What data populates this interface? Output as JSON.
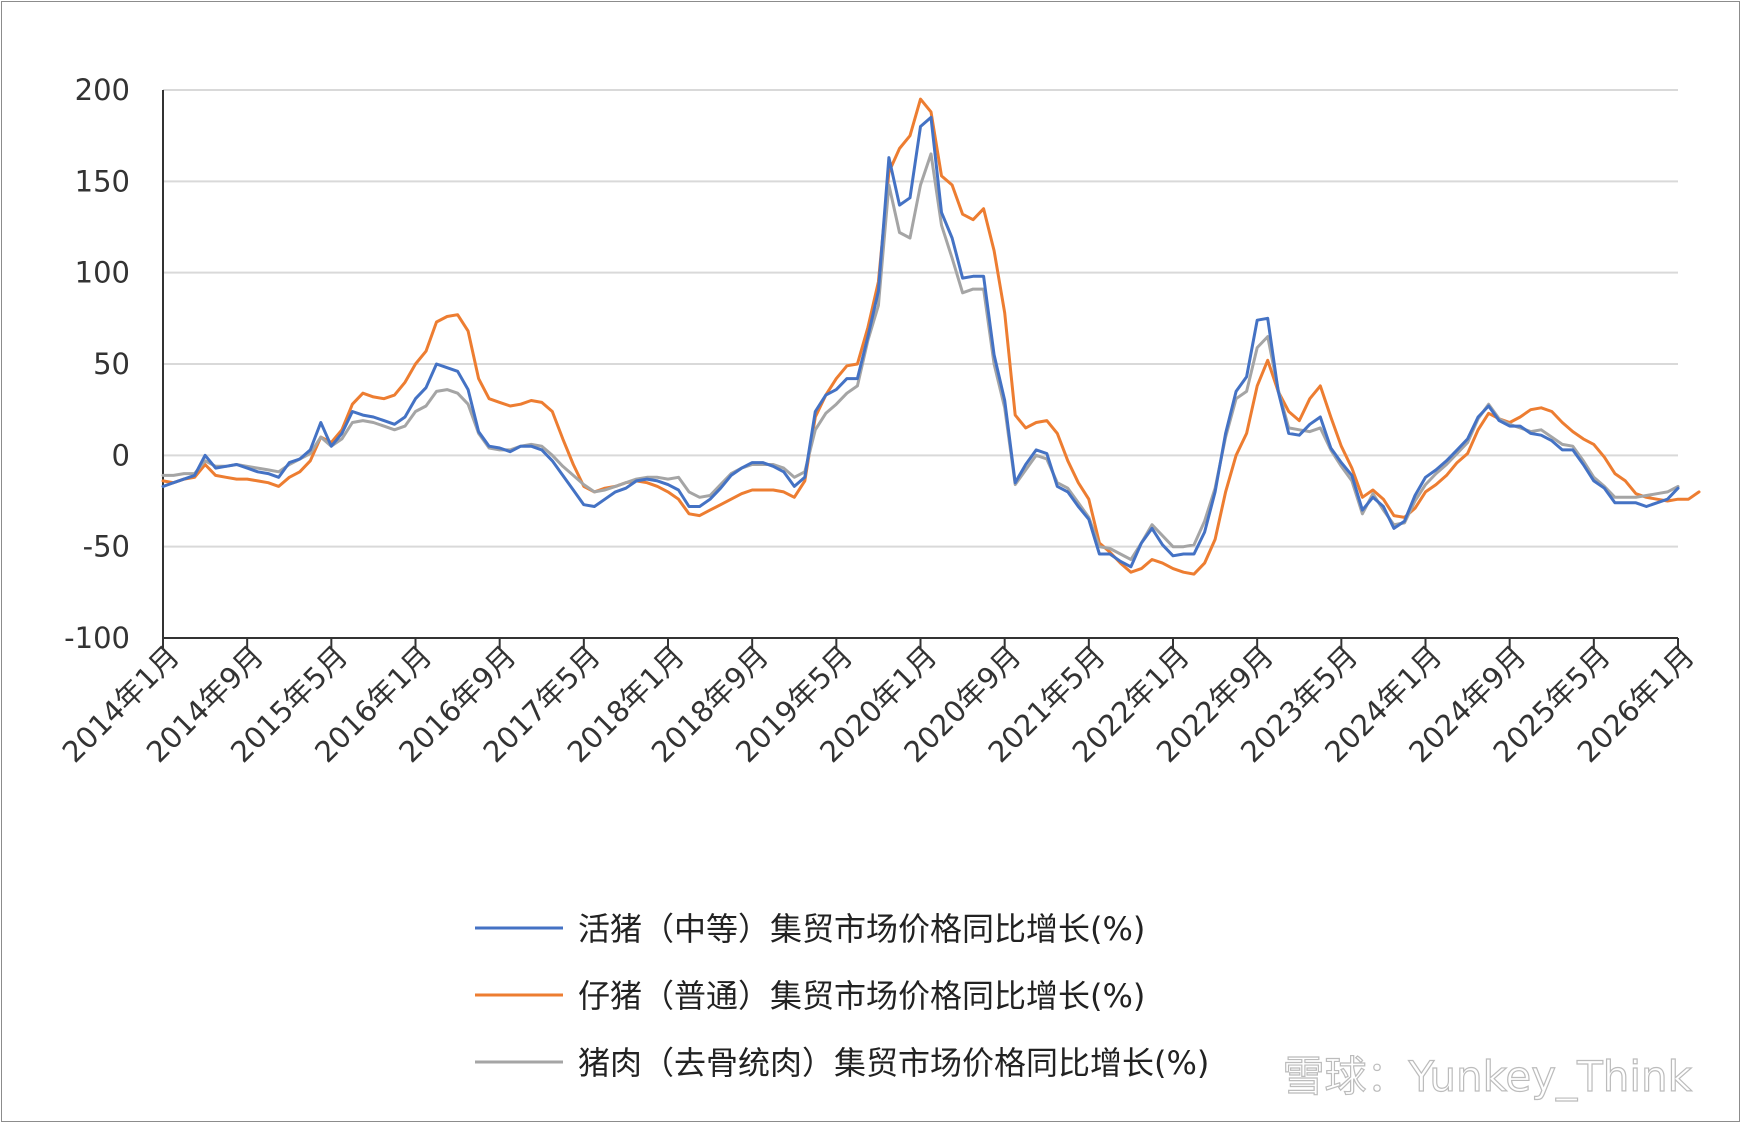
{
  "chart_data": {
    "type": "line",
    "ylim": [
      -100,
      200
    ],
    "yticks": [
      "200",
      "150",
      "100",
      "50",
      "0",
      "-50",
      "-100"
    ],
    "x_tick_labels": [
      "2014年1月",
      "2014年9月",
      "2015年5月",
      "2016年1月",
      "2016年9月",
      "2017年5月",
      "2018年1月",
      "2018年9月",
      "2019年5月",
      "2020年1月",
      "2020年9月",
      "2021年5月",
      "2022年1月",
      "2022年9月",
      "2023年5月",
      "2024年1月",
      "2024年9月",
      "2025年5月",
      "2026年1月"
    ],
    "x_start": "2014-01",
    "x_end": "2026-01",
    "grid": true,
    "legend_position": "bottom",
    "series": [
      {
        "name": "活猪（中等）集贸市场价格同比增长(%)",
        "color": "#4472C4",
        "values": [
          -17,
          -15,
          -13,
          -11,
          0,
          -7,
          -6,
          -5,
          -7,
          -9,
          -10,
          -12,
          -4,
          -2,
          3,
          18,
          5,
          12,
          24,
          22,
          21,
          19,
          17,
          21,
          31,
          37,
          50,
          48,
          46,
          36,
          13,
          5,
          4,
          2,
          5,
          5,
          3,
          -3,
          -11,
          -19,
          -27,
          -28,
          -24,
          -20,
          -18,
          -14,
          -13,
          -14,
          -16,
          -19,
          -28,
          -28,
          -24,
          -18,
          -11,
          -7,
          -4,
          -4,
          -6,
          -9,
          -17,
          -12,
          24,
          33,
          36,
          42,
          42,
          65,
          90,
          163,
          137,
          141,
          180,
          185,
          133,
          119,
          97,
          98,
          98,
          55,
          30,
          -15,
          -5,
          3,
          1,
          -17,
          -20,
          -28,
          -35,
          -54,
          -54,
          -58,
          -61,
          -48,
          -40,
          -49,
          -55,
          -54,
          -54,
          -42,
          -20,
          12,
          35,
          43,
          74,
          75,
          35,
          12,
          11,
          17,
          21,
          4,
          -4,
          -11,
          -30,
          -23,
          -28,
          -40,
          -36,
          -22,
          -12,
          -8,
          -3,
          3,
          9,
          21,
          27,
          19,
          16,
          16,
          12,
          11,
          8,
          3,
          3,
          -5,
          -14,
          -18,
          -26,
          -26,
          -26,
          -28,
          -26,
          -24,
          -18
        ]
      },
      {
        "name": "仔猪（普通）集贸市场价格同比增长(%)",
        "color": "#ED7D31",
        "values": [
          -14,
          -15,
          -13,
          -12,
          -5,
          -11,
          -12,
          -13,
          -13,
          -14,
          -15,
          -17,
          -12,
          -9,
          -3,
          10,
          7,
          14,
          28,
          34,
          32,
          31,
          33,
          40,
          50,
          57,
          73,
          76,
          77,
          68,
          42,
          31,
          29,
          27,
          28,
          30,
          29,
          24,
          9,
          -5,
          -17,
          -20,
          -18,
          -17,
          -15,
          -14,
          -15,
          -17,
          -20,
          -24,
          -32,
          -33,
          -30,
          -27,
          -24,
          -21,
          -19,
          -19,
          -19,
          -20,
          -23,
          -14,
          21,
          33,
          42,
          49,
          50,
          70,
          95,
          155,
          168,
          175,
          195,
          188,
          153,
          148,
          132,
          129,
          135,
          112,
          78,
          22,
          15,
          18,
          19,
          12,
          -3,
          -15,
          -24,
          -48,
          -53,
          -59,
          -64,
          -62,
          -57,
          -59,
          -62,
          -64,
          -65,
          -59,
          -46,
          -20,
          0,
          12,
          38,
          52,
          35,
          24,
          19,
          31,
          38,
          21,
          5,
          -7,
          -23,
          -19,
          -24,
          -33,
          -34,
          -29,
          -20,
          -16,
          -11,
          -4,
          1,
          14,
          23,
          20,
          18,
          21,
          25,
          26,
          24,
          18,
          13,
          9,
          6,
          -1,
          -10,
          -14,
          -21,
          -23,
          -24,
          -25,
          -24,
          -24,
          -20
        ]
      },
      {
        "name": "猪肉（去骨统肉）集贸市场价格同比增长(%)",
        "color": "#A5A5A5",
        "values": [
          -11,
          -11,
          -10,
          -10,
          -3,
          -6,
          -6,
          -5,
          -6,
          -7,
          -8,
          -9,
          -5,
          -2,
          1,
          10,
          5,
          9,
          18,
          19,
          18,
          16,
          14,
          16,
          24,
          27,
          35,
          36,
          34,
          28,
          12,
          4,
          3,
          3,
          5,
          6,
          5,
          0,
          -6,
          -11,
          -16,
          -20,
          -19,
          -17,
          -15,
          -13,
          -12,
          -12,
          -13,
          -12,
          -20,
          -23,
          -22,
          -16,
          -10,
          -7,
          -5,
          -5,
          -5,
          -7,
          -12,
          -9,
          14,
          23,
          28,
          34,
          38,
          63,
          82,
          148,
          122,
          119,
          148,
          165,
          126,
          108,
          89,
          91,
          91,
          50,
          26,
          -16,
          -8,
          0,
          -2,
          -15,
          -18,
          -26,
          -34,
          -50,
          -51,
          -54,
          -57,
          -48,
          -38,
          -44,
          -50,
          -50,
          -49,
          -36,
          -18,
          10,
          31,
          35,
          59,
          65,
          36,
          15,
          14,
          13,
          15,
          3,
          -6,
          -14,
          -32,
          -21,
          -30,
          -38,
          -37,
          -25,
          -16,
          -10,
          -5,
          1,
          7,
          20,
          28,
          20,
          17,
          15,
          13,
          14,
          10,
          6,
          5,
          -3,
          -12,
          -17,
          -23,
          -23,
          -23,
          -22,
          -21,
          -20,
          -17
        ]
      }
    ]
  },
  "watermark": "雪球：Yunkey_Think"
}
